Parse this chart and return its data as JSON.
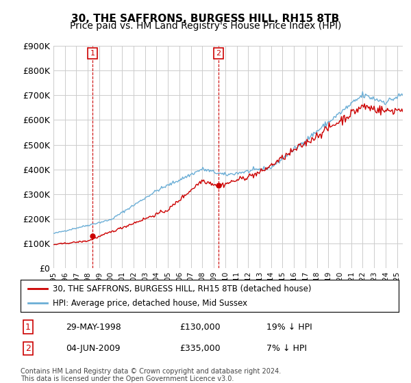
{
  "title": "30, THE SAFFRONS, BURGESS HILL, RH15 8TB",
  "subtitle": "Price paid vs. HM Land Registry's House Price Index (HPI)",
  "ylabel_values": [
    "£0",
    "£100K",
    "£200K",
    "£300K",
    "£400K",
    "£500K",
    "£600K",
    "£700K",
    "£800K",
    "£900K"
  ],
  "ylim": [
    0,
    900000
  ],
  "xlim_start": 1995.0,
  "xlim_end": 2025.5,
  "sale1_date": 1998.41,
  "sale1_price": 130000,
  "sale1_label": "1",
  "sale2_date": 2009.42,
  "sale2_price": 335000,
  "sale2_label": "2",
  "hpi_color": "#6baed6",
  "price_color": "#cc0000",
  "vline_color": "#cc0000",
  "grid_color": "#cccccc",
  "background_color": "#ffffff",
  "legend_label_price": "30, THE SAFFRONS, BURGESS HILL, RH15 8TB (detached house)",
  "legend_label_hpi": "HPI: Average price, detached house, Mid Sussex",
  "table_row1": [
    "1",
    "29-MAY-1998",
    "£130,000",
    "19% ↓ HPI"
  ],
  "table_row2": [
    "2",
    "04-JUN-2009",
    "£335,000",
    "7% ↓ HPI"
  ],
  "footnote": "Contains HM Land Registry data © Crown copyright and database right 2024.\nThis data is licensed under the Open Government Licence v3.0.",
  "title_fontsize": 11,
  "subtitle_fontsize": 10
}
